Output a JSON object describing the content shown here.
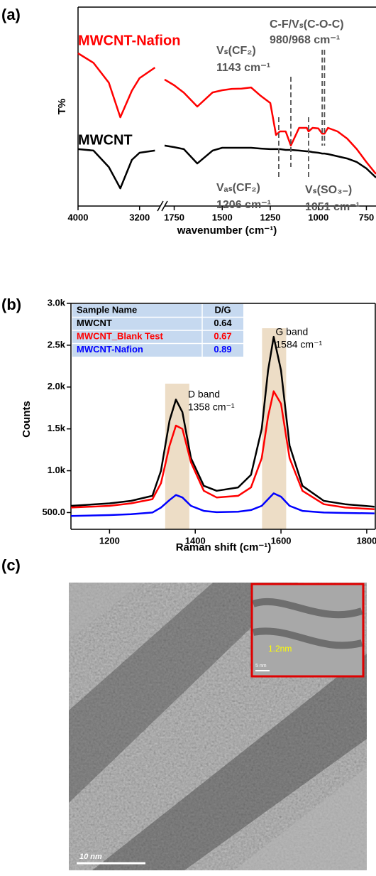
{
  "chart_data": [
    {
      "type": "line",
      "panel_label": "(a)",
      "xlabel": "wavenumber (cm⁻¹)",
      "ylabel": "T%",
      "xlim": [
        [
          4000,
          2930
        ],
        [
          1800,
          700
        ]
      ],
      "ylim": [
        0,
        100
      ],
      "xticks": [
        4000,
        3200,
        1750,
        1500,
        1250,
        1000,
        750
      ],
      "x": [
        4000,
        3800,
        3600,
        3450,
        3300,
        3200,
        3000,
        1800,
        1750,
        1700,
        1630,
        1550,
        1500,
        1450,
        1400,
        1350,
        1300,
        1250,
        1220,
        1200,
        1170,
        1143,
        1100,
        1060,
        1051,
        1030,
        1000,
        980,
        968,
        950,
        900,
        850,
        800,
        750,
        700
      ],
      "series": [
        {
          "name": "MWCNT-Nafion",
          "color": "#ff0000",
          "values": [
            76.8,
            72,
            62,
            44.6,
            58,
            64.3,
            69.6,
            63.6,
            60.7,
            57,
            50,
            57.1,
            58.2,
            58.9,
            59,
            59.6,
            55.4,
            51.8,
            35.7,
            37.5,
            37.5,
            30.4,
            39.3,
            39.3,
            37.5,
            39.3,
            39,
            36.4,
            36.4,
            39.3,
            37.5,
            33.9,
            28.6,
            22.1,
            16.1
          ]
        },
        {
          "name": "MWCNT",
          "color": "#000000",
          "values": [
            28.6,
            27.9,
            19.6,
            8.9,
            23.2,
            26.8,
            27.9,
            30.4,
            29.6,
            28.6,
            21.4,
            27.9,
            29.3,
            29.3,
            29.3,
            29.3,
            28.9,
            28.6,
            28.6,
            28.6,
            28.2,
            28.2,
            27.9,
            27.5,
            27.5,
            27.1,
            26.8,
            26.4,
            26.4,
            26.1,
            25,
            23.9,
            22.1,
            18.9,
            14.3
          ]
        }
      ],
      "annotations": [
        {
          "lines": [
            "Vₛ(CF₂)",
            "1143 cm⁻¹"
          ],
          "x": [
            1143
          ]
        },
        {
          "lines": [
            "C-F/Vₛ(C-O-C)",
            "980/968 cm⁻¹"
          ],
          "x": [
            980,
            968
          ]
        },
        {
          "lines": [
            "Vₐₛ(CF₂)",
            "1206 cm⁻¹"
          ],
          "x": [
            1206
          ]
        },
        {
          "lines": [
            "Vₛ(SO₃₋)",
            "1051 cm⁻¹"
          ],
          "x": [
            1051
          ]
        }
      ]
    },
    {
      "type": "line",
      "panel_label": "(b)",
      "xlabel": "Raman shift (cm⁻¹)",
      "ylabel": "Counts",
      "xlim": [
        1110,
        1820
      ],
      "ylim": [
        300,
        3000
      ],
      "xticks": [
        1200,
        1400,
        1600,
        1800
      ],
      "yticks": [
        {
          "value": 500,
          "label": "500.0"
        },
        {
          "value": 1000,
          "label": "1.0k"
        },
        {
          "value": 1500,
          "label": "1.5k"
        },
        {
          "value": 2000,
          "label": "2.0k"
        },
        {
          "value": 2500,
          "label": "2.5k"
        },
        {
          "value": 3000,
          "label": "3.0k"
        }
      ],
      "x": [
        1110,
        1200,
        1250,
        1300,
        1320,
        1340,
        1355,
        1370,
        1390,
        1420,
        1450,
        1500,
        1530,
        1555,
        1570,
        1583,
        1600,
        1620,
        1650,
        1700,
        1750,
        1818
      ],
      "series": [
        {
          "name": "MWCNT",
          "color": "#000000",
          "d_g": 0.64,
          "values": [
            580,
            610,
            640,
            700,
            1000,
            1600,
            1850,
            1700,
            1150,
            820,
            760,
            800,
            950,
            1500,
            2200,
            2600,
            2200,
            1300,
            820,
            640,
            600,
            570
          ]
        },
        {
          "name": "MWCNT_Blank Test",
          "color": "#ff0000",
          "d_g": 0.67,
          "values": [
            560,
            580,
            610,
            660,
            850,
            1300,
            1540,
            1500,
            1100,
            760,
            680,
            700,
            800,
            1150,
            1650,
            1950,
            1800,
            1150,
            760,
            600,
            560,
            540
          ]
        },
        {
          "name": "MWCNT-Nafion",
          "color": "#0000ff",
          "d_g": 0.89,
          "values": [
            460,
            470,
            480,
            500,
            560,
            650,
            710,
            680,
            580,
            520,
            505,
            510,
            530,
            580,
            660,
            730,
            690,
            580,
            520,
            500,
            495,
            490
          ]
        }
      ],
      "table_headers": [
        "Sample Name",
        "D/G"
      ],
      "bands": [
        {
          "name": "D band",
          "position": 1358,
          "label": "1358 cm⁻¹"
        },
        {
          "name": "G band",
          "position": 1584,
          "label": "1584 cm⁻¹"
        }
      ]
    }
  ],
  "image": {
    "panel_label": "(c)",
    "scale_bar": "10 nm",
    "inset": {
      "measurement": "1.2nm",
      "scale_bar": "5 nm"
    }
  }
}
